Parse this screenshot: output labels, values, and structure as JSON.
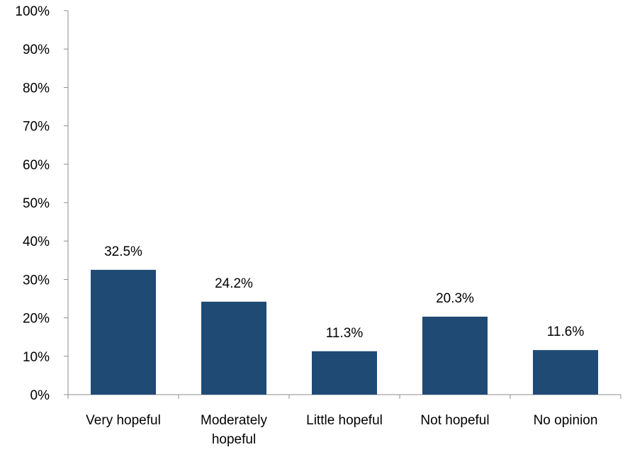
{
  "chart_data": {
    "type": "bar",
    "title": "",
    "xlabel": "",
    "ylabel": "",
    "categories": [
      [
        "Very hopeful"
      ],
      [
        "Moderately",
        "hopeful"
      ],
      [
        "Little hopeful"
      ],
      [
        "Not hopeful"
      ],
      [
        "No opinion"
      ]
    ],
    "values": [
      32.5,
      24.2,
      11.3,
      20.3,
      11.6
    ],
    "data_labels": [
      "32.5%",
      "24.2%",
      "11.3%",
      "20.3%",
      "11.6%"
    ],
    "ylim": [
      0,
      100
    ],
    "yticks": [
      0,
      10,
      20,
      30,
      40,
      50,
      60,
      70,
      80,
      90,
      100
    ],
    "ytick_labels": [
      "0%",
      "10%",
      "20%",
      "30%",
      "40%",
      "50%",
      "60%",
      "70%",
      "80%",
      "90%",
      "100%"
    ],
    "grid": false,
    "legend": "none",
    "bar_color": "#1F4A74",
    "axis_color": "#8C8C8C"
  }
}
